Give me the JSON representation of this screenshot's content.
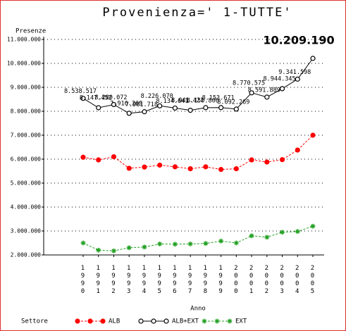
{
  "chart_data": {
    "type": "line",
    "title": "Provenienza=' 1-TUTTE'",
    "y_label": "Presenze",
    "x_label": "Anno",
    "legend_title": "Settore",
    "categories": [
      "1990",
      "1991",
      "1992",
      "1993",
      "1994",
      "1995",
      "1996",
      "1997",
      "1998",
      "1999",
      "2000",
      "2001",
      "2002",
      "2003",
      "2004",
      "2005"
    ],
    "series": [
      {
        "name": "ALB",
        "color": "#ff0000",
        "marker": "filled-circle",
        "values": [
          6080000,
          5970000,
          6100000,
          5620000,
          5670000,
          5750000,
          5680000,
          5600000,
          5680000,
          5570000,
          5600000,
          5970000,
          5880000,
          5980000,
          6380000,
          7000000
        ]
      },
      {
        "name": "ALB+EXT",
        "color": "#000000",
        "marker": "open-circle",
        "values": [
          8538517,
          8147452,
          8280072,
          7916269,
          7981718,
          8226070,
          8134641,
          8041421,
          8150806,
          8153671,
          8092269,
          8770575,
          8591889,
          8944345,
          9341598,
          10209190
        ],
        "value_labels": [
          "8.538.517",
          "8.147.452",
          "8.280.072",
          "7.916.269",
          "7.981.718",
          "8.226.070",
          "8.134.641",
          "8.041.421",
          "8.150.806",
          "8.153.671",
          "8.092.269",
          "8.770.575",
          "8.591.889",
          "8.944.345",
          "9.341.598",
          "10.209.190"
        ]
      },
      {
        "name": "EXT",
        "color": "#22a022",
        "marker": "star",
        "values": [
          2500000,
          2200000,
          2170000,
          2300000,
          2330000,
          2460000,
          2450000,
          2460000,
          2480000,
          2580000,
          2500000,
          2800000,
          2740000,
          2950000,
          2980000,
          3200000
        ]
      }
    ],
    "ylim": [
      2000000,
      11000000
    ],
    "yticks": [
      {
        "value": 2000000,
        "label": "2.000.000"
      },
      {
        "value": 3000000,
        "label": "3.000.000"
      },
      {
        "value": 4000000,
        "label": "4.000.000"
      },
      {
        "value": 5000000,
        "label": "5.000.000"
      },
      {
        "value": 6000000,
        "label": "6.000.000"
      },
      {
        "value": 7000000,
        "label": "7.000.000"
      },
      {
        "value": 8000000,
        "label": "8.000.000"
      },
      {
        "value": 9000000,
        "label": "9.000.000"
      },
      {
        "value": 10000000,
        "label": "10.000.000"
      },
      {
        "value": 11000000,
        "label": "11.000.000"
      }
    ],
    "grid": true
  }
}
